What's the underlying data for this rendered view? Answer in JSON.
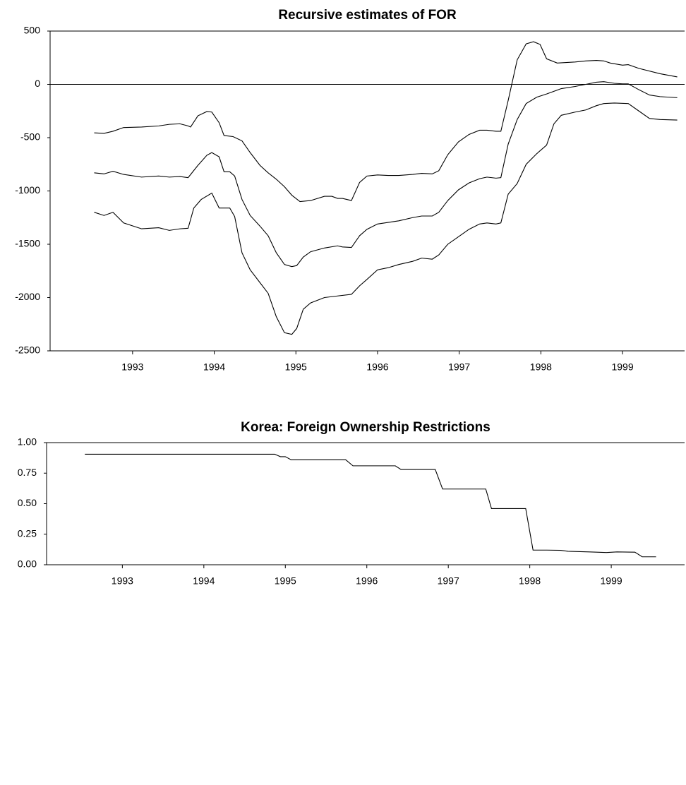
{
  "chart_data": [
    {
      "type": "line",
      "title": "Recursive estimates of FOR",
      "xlim": [
        1992.49,
        2000.26
      ],
      "ylim": [
        -2500,
        500
      ],
      "xticks": [
        {
          "value": 1993.5,
          "label": "1993"
        },
        {
          "value": 1994.5,
          "label": "1994"
        },
        {
          "value": 1995.5,
          "label": "1995"
        },
        {
          "value": 1996.5,
          "label": "1996"
        },
        {
          "value": 1997.5,
          "label": "1997"
        },
        {
          "value": 1998.5,
          "label": "1998"
        },
        {
          "value": 1999.5,
          "label": "1999"
        }
      ],
      "yticks": [
        -2500,
        -2000,
        -1500,
        -1000,
        -500,
        0,
        500
      ],
      "zero_line": true,
      "series": [
        {
          "color": "#000000",
          "x": [
            1993.03,
            1993.15,
            1993.26,
            1993.39,
            1993.61,
            1993.82,
            1993.95,
            1994.08,
            1994.18,
            1994.21,
            1994.3,
            1994.41,
            1994.47,
            1994.56,
            1994.62,
            1994.73,
            1994.84,
            1994.94,
            1995.06,
            1995.16,
            1995.26,
            1995.36,
            1995.45,
            1995.55,
            1995.68,
            1995.85,
            1995.94,
            1996.01,
            1996.07,
            1996.18,
            1996.28,
            1996.37,
            1996.5,
            1996.63,
            1996.76,
            1996.93,
            1997.04,
            1997.17,
            1997.25,
            1997.36,
            1997.49,
            1997.62,
            1997.75,
            1997.84,
            1997.95,
            1998.01,
            1998.1,
            1998.21,
            1998.32,
            1998.41,
            1998.49,
            1998.57,
            1998.7,
            1998.92,
            1999.05,
            1999.18,
            1999.27,
            1999.35,
            1999.5,
            1999.57,
            1999.7,
            1999.96,
            2000.17
          ],
          "values": [
            -455,
            -460,
            -440,
            -405,
            -400,
            -390,
            -375,
            -370,
            -390,
            -400,
            -295,
            -255,
            -260,
            -360,
            -480,
            -490,
            -530,
            -640,
            -760,
            -830,
            -890,
            -960,
            -1040,
            -1100,
            -1090,
            -1050,
            -1050,
            -1070,
            -1070,
            -1090,
            -920,
            -860,
            -850,
            -855,
            -855,
            -845,
            -835,
            -840,
            -810,
            -660,
            -540,
            -470,
            -430,
            -430,
            -440,
            -440,
            -150,
            230,
            380,
            400,
            375,
            240,
            200,
            210,
            220,
            225,
            220,
            200,
            180,
            185,
            150,
            100,
            70
          ]
        },
        {
          "color": "#000000",
          "x": [
            1993.03,
            1993.15,
            1993.26,
            1993.39,
            1993.61,
            1993.82,
            1993.95,
            1994.08,
            1994.18,
            1994.3,
            1994.41,
            1994.47,
            1994.56,
            1994.62,
            1994.69,
            1994.75,
            1994.84,
            1994.94,
            1995.06,
            1995.16,
            1995.26,
            1995.36,
            1995.45,
            1995.51,
            1995.59,
            1995.68,
            1995.85,
            1996.01,
            1996.07,
            1996.18,
            1996.28,
            1996.37,
            1996.5,
            1996.63,
            1996.76,
            1996.93,
            1997.04,
            1997.17,
            1997.25,
            1997.36,
            1997.49,
            1997.62,
            1997.75,
            1997.84,
            1997.95,
            1998.01,
            1998.1,
            1998.21,
            1998.32,
            1998.45,
            1998.57,
            1998.75,
            1998.92,
            1999.05,
            1999.18,
            1999.27,
            1999.4,
            1999.5,
            1999.57,
            1999.7,
            1999.83,
            1999.96,
            2000.17
          ],
          "values": [
            -830,
            -840,
            -815,
            -845,
            -870,
            -860,
            -870,
            -865,
            -875,
            -760,
            -665,
            -640,
            -680,
            -820,
            -820,
            -860,
            -1080,
            -1230,
            -1330,
            -1420,
            -1580,
            -1690,
            -1710,
            -1700,
            -1620,
            -1570,
            -1535,
            -1515,
            -1525,
            -1530,
            -1420,
            -1360,
            -1310,
            -1295,
            -1280,
            -1250,
            -1235,
            -1235,
            -1200,
            -1090,
            -990,
            -925,
            -885,
            -870,
            -880,
            -875,
            -560,
            -330,
            -180,
            -120,
            -90,
            -40,
            -20,
            0,
            20,
            25,
            10,
            5,
            5,
            -50,
            -100,
            -115,
            -125
          ]
        },
        {
          "color": "#000000",
          "x": [
            1993.03,
            1993.15,
            1993.26,
            1993.39,
            1993.61,
            1993.82,
            1993.95,
            1994.08,
            1994.18,
            1994.25,
            1994.34,
            1994.47,
            1994.56,
            1994.69,
            1994.75,
            1994.84,
            1994.94,
            1995.06,
            1995.16,
            1995.26,
            1995.36,
            1995.45,
            1995.51,
            1995.59,
            1995.68,
            1995.85,
            1996.01,
            1996.18,
            1996.28,
            1996.37,
            1996.5,
            1996.63,
            1996.76,
            1996.93,
            1997.04,
            1997.17,
            1997.25,
            1997.36,
            1997.49,
            1997.62,
            1997.75,
            1997.84,
            1997.95,
            1998.01,
            1998.1,
            1998.21,
            1998.32,
            1998.45,
            1998.57,
            1998.66,
            1998.75,
            1998.92,
            1999.05,
            1999.18,
            1999.27,
            1999.4,
            1999.57,
            1999.7,
            1999.83,
            1999.96,
            2000.17
          ],
          "values": [
            -1200,
            -1230,
            -1200,
            -1300,
            -1355,
            -1345,
            -1370,
            -1355,
            -1350,
            -1160,
            -1080,
            -1020,
            -1160,
            -1160,
            -1240,
            -1580,
            -1740,
            -1860,
            -1960,
            -2180,
            -2330,
            -2345,
            -2290,
            -2110,
            -2050,
            -2000,
            -1985,
            -1970,
            -1890,
            -1830,
            -1740,
            -1720,
            -1690,
            -1660,
            -1630,
            -1640,
            -1600,
            -1500,
            -1430,
            -1360,
            -1310,
            -1300,
            -1310,
            -1300,
            -1030,
            -930,
            -750,
            -650,
            -570,
            -370,
            -290,
            -260,
            -240,
            -200,
            -180,
            -175,
            -180,
            -250,
            -320,
            -330,
            -335
          ]
        }
      ]
    },
    {
      "type": "line",
      "title": "Korea: Foreign Ownership Restrictions",
      "xlim": [
        1992.55,
        2000.38
      ],
      "ylim": [
        0,
        1
      ],
      "xticks": [
        {
          "value": 1993.48,
          "label": "1993"
        },
        {
          "value": 1994.48,
          "label": "1994"
        },
        {
          "value": 1995.48,
          "label": "1995"
        },
        {
          "value": 1996.48,
          "label": "1996"
        },
        {
          "value": 1997.48,
          "label": "1997"
        },
        {
          "value": 1998.48,
          "label": "1998"
        },
        {
          "value": 1999.48,
          "label": "1999"
        }
      ],
      "yticks": [
        {
          "value": 0,
          "label": "0.00"
        },
        {
          "value": 0.25,
          "label": "0.25"
        },
        {
          "value": 0.5,
          "label": "0.50"
        },
        {
          "value": 0.75,
          "label": "0.75"
        },
        {
          "value": 1,
          "label": "1.00"
        }
      ],
      "zero_line": false,
      "series": [
        {
          "color": "#000000",
          "x": [
            1993.02,
            1995.35,
            1995.42,
            1995.48,
            1995.55,
            1996.22,
            1996.31,
            1996.83,
            1996.9,
            1997.32,
            1997.41,
            1997.94,
            1998.01,
            1998.43,
            1998.52,
            1998.69,
            1998.86,
            1998.95,
            1999.21,
            1999.42,
            1999.55,
            1999.77,
            1999.86,
            2000.03
          ],
          "values": [
            0.905,
            0.905,
            0.885,
            0.885,
            0.86,
            0.86,
            0.81,
            0.81,
            0.78,
            0.78,
            0.62,
            0.62,
            0.46,
            0.46,
            0.12,
            0.12,
            0.118,
            0.11,
            0.105,
            0.1,
            0.105,
            0.103,
            0.065,
            0.065
          ]
        }
      ]
    }
  ]
}
